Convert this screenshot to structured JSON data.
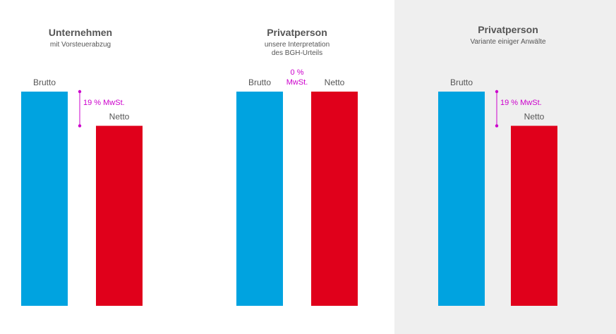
{
  "colors": {
    "brutto": "#00a3e0",
    "netto": "#e0001b",
    "vat": "#cc00cc",
    "highlight": "#efefef"
  },
  "chart_data": [
    {
      "type": "bar",
      "title": "Unternehmen",
      "subtitle": [
        "mit Vorsteuerabzug"
      ],
      "categories": [
        "Brutto",
        "Netto"
      ],
      "values": [
        119,
        100
      ],
      "vat_label": [
        "19 % MwSt."
      ],
      "highlighted": false
    },
    {
      "type": "bar",
      "title": "Privatperson",
      "subtitle": [
        "unsere Interpretation",
        "des BGH-Urteils"
      ],
      "categories": [
        "Brutto",
        "Netto"
      ],
      "values": [
        119,
        119
      ],
      "vat_label": [
        "0 %",
        "MwSt."
      ],
      "highlighted": false
    },
    {
      "type": "bar",
      "title": "Privatperson",
      "subtitle": [
        "Variante einiger Anwälte"
      ],
      "categories": [
        "Brutto",
        "Netto"
      ],
      "values": [
        119,
        100
      ],
      "vat_label": [
        "19 % MwSt."
      ],
      "highlighted": true
    }
  ]
}
